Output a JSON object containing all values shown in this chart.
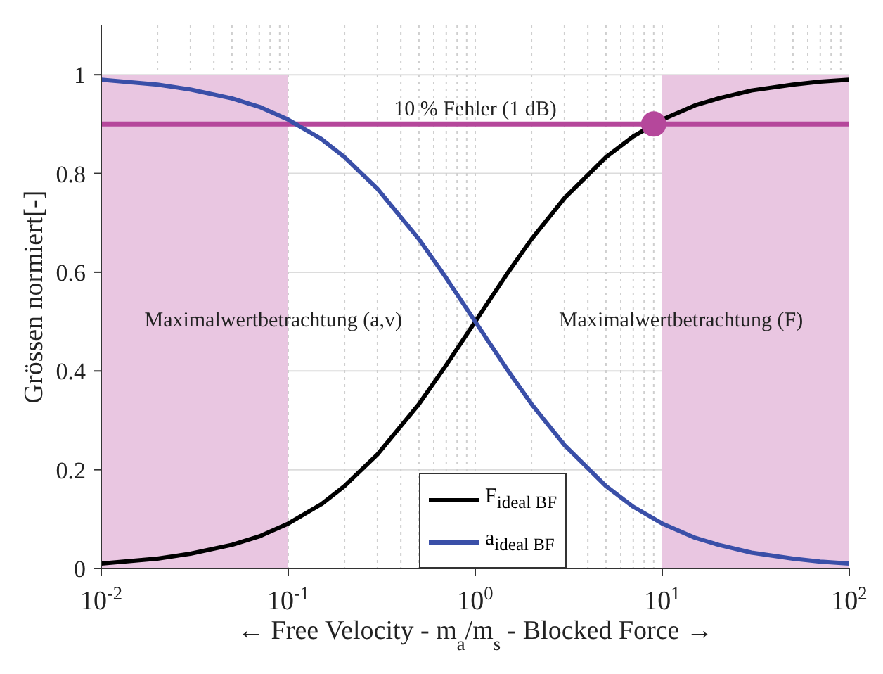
{
  "chart_data": {
    "type": "line",
    "ylabel": "Grössen normiert[-]",
    "xlabel": "← Free Velocity - m$_{a}$/m$_{s}$ - Blocked Force →",
    "log": "x",
    "xlim": [
      0.01,
      100
    ],
    "xticks": [
      {
        "value": 0.01,
        "label": "10$^{-2}$"
      },
      {
        "value": 0.1,
        "label": "10$^{-1}$"
      },
      {
        "value": 1,
        "label": "10$^{0}$"
      },
      {
        "value": 10,
        "label": "10$^{1}$"
      },
      {
        "value": 100,
        "label": "10$^{2}$"
      }
    ],
    "ylim": [
      0,
      1.1
    ],
    "yticks": [
      0,
      0.2,
      0.4,
      0.6,
      0.8,
      1
    ],
    "grid": true,
    "legend": "bottom",
    "x": [
      0.01,
      0.02,
      0.03,
      0.05,
      0.07,
      0.1,
      0.15,
      0.2,
      0.3,
      0.5,
      0.7,
      1,
      1.5,
      2,
      3,
      5,
      7,
      10,
      15,
      20,
      30,
      50,
      70,
      100
    ],
    "series": [
      {
        "name": "F$_{ideal BF}$",
        "color": "#000000",
        "values": [
          0.01,
          0.02,
          0.03,
          0.048,
          0.065,
          0.091,
          0.13,
          0.167,
          0.231,
          0.333,
          0.412,
          0.5,
          0.6,
          0.667,
          0.75,
          0.833,
          0.875,
          0.909,
          0.938,
          0.952,
          0.968,
          0.98,
          0.986,
          0.99
        ]
      },
      {
        "name": "a$_{ideal BF}$",
        "color": "#3a4fa8",
        "values": [
          0.99,
          0.98,
          0.97,
          0.952,
          0.935,
          0.909,
          0.87,
          0.833,
          0.769,
          0.667,
          0.588,
          0.5,
          0.4,
          0.333,
          0.25,
          0.167,
          0.125,
          0.091,
          0.062,
          0.048,
          0.032,
          0.02,
          0.014,
          0.01
        ]
      },
      {
        "type": "scatter",
        "color": "#b5479b",
        "marker": "circle",
        "x": [
          9
        ],
        "values": [
          0.9
        ]
      }
    ],
    "ref_lines": [
      {
        "axis": "y",
        "value": 0.9,
        "label": "10 % Fehler (1 dB)",
        "color": "#b5479b"
      }
    ],
    "bands": [
      {
        "axis": "x",
        "from": 0.01,
        "to": 0.1,
        "color": "#e9c6e1"
      },
      {
        "axis": "x",
        "from": 10,
        "to": 100,
        "color": "#e9c6e1"
      }
    ],
    "annotations": [
      "Maximalwertbetrachtung (a,v)",
      "Maximalwertbetrachtung (F)"
    ]
  }
}
